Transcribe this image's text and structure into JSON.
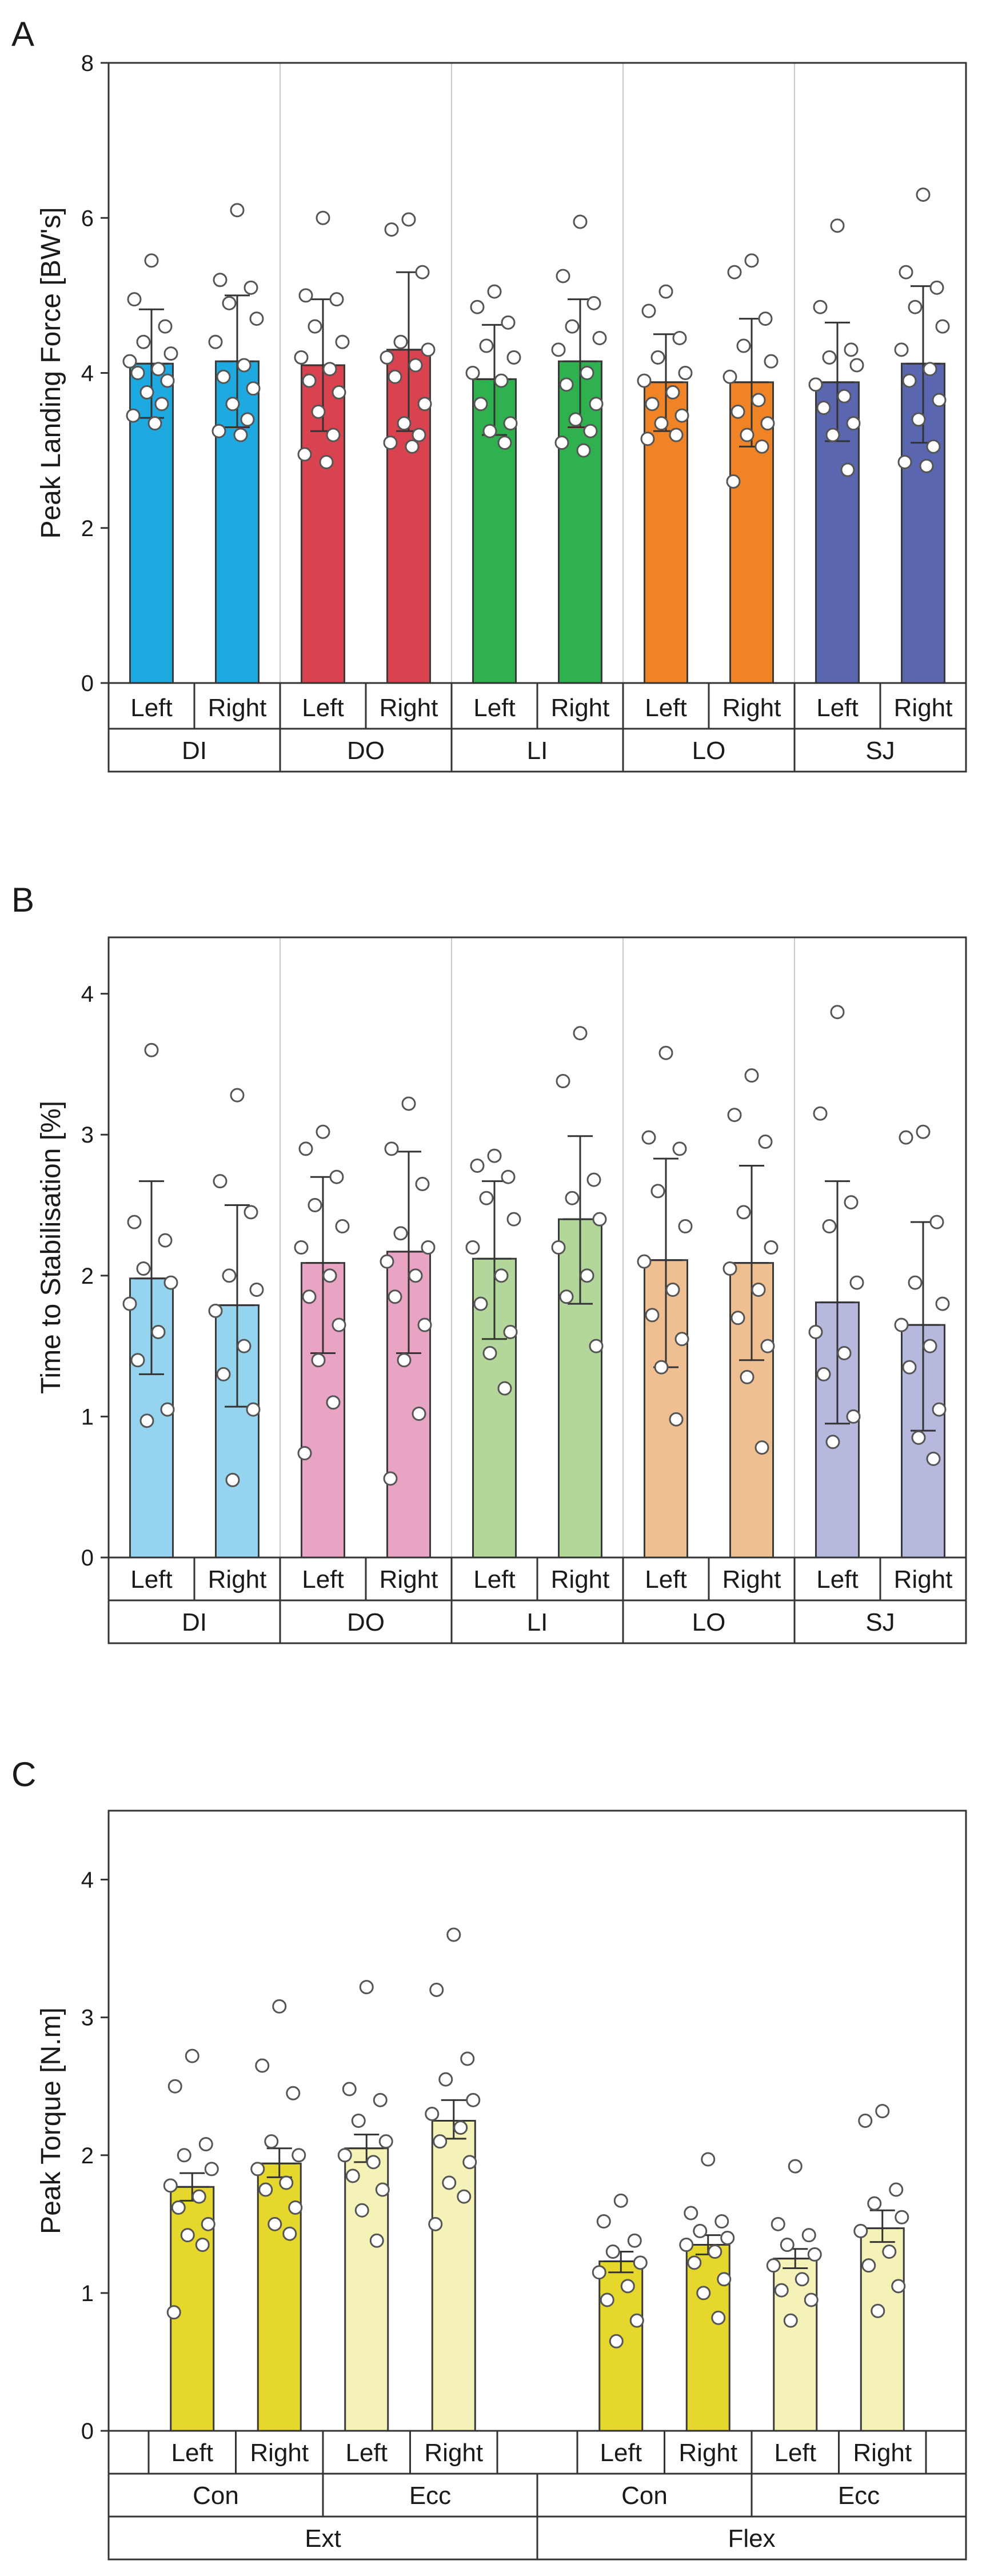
{
  "chart_data": [
    {
      "panel": "A",
      "type": "bar",
      "ylabel": "Peak Landing Force [BW's]",
      "ylim": [
        0,
        8
      ],
      "yticks": [
        0,
        2,
        4,
        6,
        8
      ],
      "grid": false,
      "separators": true,
      "groups": [
        "DI",
        "DO",
        "LI",
        "LO",
        "SJ"
      ],
      "bars": [
        {
          "label": "Left",
          "group": "DI",
          "value": 4.12,
          "err": [
            3.42,
            4.82
          ],
          "color": "#1ea9e0",
          "points": [
            5.45,
            4.95,
            4.6,
            4.4,
            4.25,
            4.15,
            4.05,
            4.0,
            3.9,
            3.75,
            3.6,
            3.45,
            3.35
          ]
        },
        {
          "label": "Right",
          "group": "DI",
          "value": 4.15,
          "err": [
            3.3,
            5.0
          ],
          "color": "#1ea9e0",
          "points": [
            6.1,
            5.2,
            5.1,
            4.9,
            4.7,
            4.4,
            4.1,
            3.95,
            3.8,
            3.6,
            3.4,
            3.25,
            3.2
          ]
        },
        {
          "label": "Left",
          "group": "DO",
          "value": 4.1,
          "err": [
            3.25,
            4.95
          ],
          "color": "#d9434f",
          "points": [
            6.0,
            5.0,
            4.95,
            4.6,
            4.4,
            4.2,
            4.05,
            3.9,
            3.75,
            3.5,
            3.2,
            2.95,
            2.85
          ]
        },
        {
          "label": "Right",
          "group": "DO",
          "value": 4.3,
          "err": [
            3.25,
            5.3
          ],
          "color": "#d9434f",
          "points": [
            5.98,
            5.85,
            5.3,
            4.4,
            4.3,
            4.2,
            4.1,
            3.95,
            3.6,
            3.35,
            3.2,
            3.1,
            3.05
          ]
        },
        {
          "label": "Left",
          "group": "LI",
          "value": 3.92,
          "err": [
            3.2,
            4.62
          ],
          "color": "#2fb150",
          "points": [
            5.05,
            4.85,
            4.65,
            4.35,
            4.2,
            4.0,
            3.9,
            3.6,
            3.35,
            3.25,
            3.1
          ]
        },
        {
          "label": "Right",
          "group": "LI",
          "value": 4.15,
          "err": [
            3.3,
            4.95
          ],
          "color": "#2fb150",
          "points": [
            5.95,
            5.25,
            4.9,
            4.6,
            4.45,
            4.3,
            4.0,
            3.85,
            3.6,
            3.4,
            3.25,
            3.1,
            3.0
          ]
        },
        {
          "label": "Left",
          "group": "LO",
          "value": 3.88,
          "err": [
            3.25,
            4.5
          ],
          "color": "#f08326",
          "points": [
            5.05,
            4.8,
            4.45,
            4.2,
            4.0,
            3.9,
            3.75,
            3.6,
            3.45,
            3.35,
            3.2,
            3.15
          ]
        },
        {
          "label": "Right",
          "group": "LO",
          "value": 3.88,
          "err": [
            3.05,
            4.7
          ],
          "color": "#f08326",
          "points": [
            5.45,
            5.3,
            4.7,
            4.35,
            4.15,
            3.95,
            3.65,
            3.5,
            3.35,
            3.2,
            3.05,
            2.6
          ]
        },
        {
          "label": "Left",
          "group": "SJ",
          "value": 3.88,
          "err": [
            3.12,
            4.65
          ],
          "color": "#5a67b0",
          "points": [
            5.9,
            4.85,
            4.3,
            4.2,
            4.1,
            3.85,
            3.7,
            3.55,
            3.35,
            3.2,
            2.75
          ]
        },
        {
          "label": "Right",
          "group": "SJ",
          "value": 4.12,
          "err": [
            3.1,
            5.12
          ],
          "color": "#5a67b0",
          "points": [
            6.3,
            5.3,
            5.1,
            4.85,
            4.6,
            4.3,
            4.05,
            3.9,
            3.65,
            3.4,
            3.05,
            2.85,
            2.8
          ]
        }
      ]
    },
    {
      "panel": "B",
      "type": "bar",
      "ylabel": "Time to Stabilisation [%]",
      "ylim": [
        0,
        4.4
      ],
      "yticks": [
        0,
        1,
        2,
        3,
        4
      ],
      "grid": false,
      "separators": true,
      "groups": [
        "DI",
        "DO",
        "LI",
        "LO",
        "SJ"
      ],
      "bars": [
        {
          "label": "Left",
          "group": "DI",
          "value": 1.98,
          "err": [
            1.3,
            2.67
          ],
          "color": "#95d4ee",
          "points": [
            3.6,
            2.38,
            2.25,
            2.05,
            1.95,
            1.8,
            1.6,
            1.4,
            1.05,
            0.97
          ]
        },
        {
          "label": "Right",
          "group": "DI",
          "value": 1.79,
          "err": [
            1.07,
            2.5
          ],
          "color": "#95d4ee",
          "points": [
            3.28,
            2.67,
            2.45,
            2.0,
            1.9,
            1.75,
            1.5,
            1.3,
            1.05,
            0.55
          ]
        },
        {
          "label": "Left",
          "group": "DO",
          "value": 2.09,
          "err": [
            1.45,
            2.7
          ],
          "color": "#e9a3c3",
          "points": [
            3.02,
            2.9,
            2.7,
            2.5,
            2.35,
            2.2,
            2.0,
            1.85,
            1.65,
            1.4,
            1.1,
            0.74
          ]
        },
        {
          "label": "Right",
          "group": "DO",
          "value": 2.17,
          "err": [
            1.45,
            2.88
          ],
          "color": "#e9a3c3",
          "points": [
            3.22,
            2.9,
            2.65,
            2.3,
            2.2,
            2.1,
            2.0,
            1.85,
            1.65,
            1.4,
            1.02,
            0.56
          ]
        },
        {
          "label": "Left",
          "group": "LI",
          "value": 2.12,
          "err": [
            1.55,
            2.67
          ],
          "color": "#b3d69a",
          "points": [
            2.85,
            2.78,
            2.7,
            2.55,
            2.4,
            2.2,
            2.0,
            1.8,
            1.6,
            1.45,
            1.2
          ]
        },
        {
          "label": "Right",
          "group": "LI",
          "value": 2.4,
          "err": [
            1.8,
            2.99
          ],
          "color": "#b3d69a",
          "points": [
            3.72,
            3.38,
            2.68,
            2.55,
            2.4,
            2.2,
            2.0,
            1.85,
            1.5
          ]
        },
        {
          "label": "Left",
          "group": "LO",
          "value": 2.11,
          "err": [
            1.35,
            2.83
          ],
          "color": "#efbf92",
          "points": [
            3.58,
            2.98,
            2.9,
            2.6,
            2.35,
            2.1,
            1.9,
            1.72,
            1.55,
            1.35,
            0.98
          ]
        },
        {
          "label": "Right",
          "group": "LO",
          "value": 2.09,
          "err": [
            1.4,
            2.78
          ],
          "color": "#efbf92",
          "points": [
            3.42,
            3.14,
            2.95,
            2.45,
            2.2,
            2.05,
            1.9,
            1.7,
            1.5,
            1.28,
            0.78
          ]
        },
        {
          "label": "Left",
          "group": "SJ",
          "value": 1.81,
          "err": [
            0.95,
            2.67
          ],
          "color": "#b6b9dd",
          "points": [
            3.87,
            3.15,
            2.52,
            2.35,
            1.95,
            1.6,
            1.45,
            1.3,
            1.0,
            0.82
          ]
        },
        {
          "label": "Right",
          "group": "SJ",
          "value": 1.65,
          "err": [
            0.9,
            2.38
          ],
          "color": "#b6b9dd",
          "points": [
            3.02,
            2.98,
            2.38,
            1.95,
            1.8,
            1.65,
            1.5,
            1.35,
            1.05,
            0.85,
            0.7
          ]
        }
      ]
    },
    {
      "panel": "C",
      "type": "bar",
      "ylabel": "Peak Torque [N.m]",
      "ylim": [
        0,
        4.5
      ],
      "yticks": [
        0,
        1,
        2,
        3,
        4
      ],
      "grid": false,
      "separators": false,
      "groups": [
        "Con",
        "Ecc",
        "Con",
        "Ecc"
      ],
      "supergroups": [
        "Ext",
        "Flex"
      ],
      "bars": [
        {
          "label": "Left",
          "group": "Con",
          "supergroup": "Ext",
          "value": 1.77,
          "err": [
            1.67,
            1.87
          ],
          "color": "#e6d72d",
          "points": [
            2.72,
            2.5,
            2.08,
            2.0,
            1.9,
            1.78,
            1.7,
            1.62,
            1.5,
            1.42,
            1.35,
            0.86
          ]
        },
        {
          "label": "Right",
          "group": "Con",
          "supergroup": "Ext",
          "value": 1.94,
          "err": [
            1.84,
            2.05
          ],
          "color": "#e6d72d",
          "points": [
            3.08,
            2.65,
            2.45,
            2.1,
            2.0,
            1.9,
            1.8,
            1.75,
            1.62,
            1.5,
            1.43
          ]
        },
        {
          "label": "Left",
          "group": "Ecc",
          "supergroup": "Ext",
          "value": 2.05,
          "err": [
            1.95,
            2.15
          ],
          "color": "#f5f2b8",
          "points": [
            3.22,
            2.48,
            2.4,
            2.25,
            2.1,
            2.0,
            1.95,
            1.85,
            1.75,
            1.6,
            1.38
          ]
        },
        {
          "label": "Right",
          "group": "Ecc",
          "supergroup": "Ext",
          "value": 2.25,
          "err": [
            2.12,
            2.4
          ],
          "color": "#f5f2b8",
          "points": [
            3.6,
            3.2,
            2.7,
            2.55,
            2.4,
            2.3,
            2.2,
            2.1,
            1.95,
            1.8,
            1.7,
            1.5
          ]
        },
        {
          "label": "Left",
          "group": "Con",
          "supergroup": "Flex",
          "value": 1.23,
          "err": [
            1.15,
            1.3
          ],
          "color": "#e6d72d",
          "points": [
            1.67,
            1.52,
            1.38,
            1.3,
            1.22,
            1.15,
            1.05,
            0.95,
            0.8,
            0.65
          ]
        },
        {
          "label": "Right",
          "group": "Con",
          "supergroup": "Flex",
          "value": 1.35,
          "err": [
            1.28,
            1.42
          ],
          "color": "#e6d72d",
          "points": [
            1.97,
            1.58,
            1.52,
            1.45,
            1.4,
            1.35,
            1.3,
            1.22,
            1.1,
            1.0,
            0.82
          ]
        },
        {
          "label": "Left",
          "group": "Ecc",
          "supergroup": "Flex",
          "value": 1.25,
          "err": [
            1.18,
            1.32
          ],
          "color": "#f5f2b8",
          "points": [
            1.92,
            1.5,
            1.42,
            1.35,
            1.28,
            1.2,
            1.1,
            1.02,
            0.95,
            0.8
          ]
        },
        {
          "label": "Right",
          "group": "Ecc",
          "supergroup": "Flex",
          "value": 1.47,
          "err": [
            1.37,
            1.6
          ],
          "color": "#f5f2b8",
          "points": [
            2.32,
            2.25,
            1.75,
            1.65,
            1.55,
            1.45,
            1.3,
            1.2,
            1.05,
            0.87
          ]
        }
      ]
    }
  ]
}
